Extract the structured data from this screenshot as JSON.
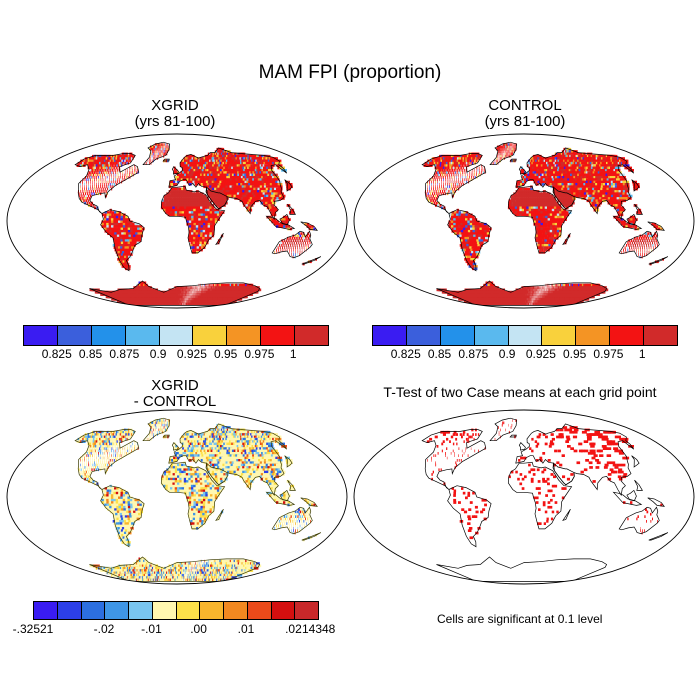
{
  "title": "MAM FPI (proportion)",
  "panels": {
    "p1": {
      "title1": "XGRID",
      "title2": "(yrs 81-100)"
    },
    "p2": {
      "title1": "CONTROL",
      "title2": "(yrs 81-100)"
    },
    "p3": {
      "title1": "XGRID",
      "title2": "- CONTROL"
    },
    "p4": {
      "title1": "T-Test of two Case means at each grid point"
    }
  },
  "colorbar_top": {
    "colors": [
      "#3a1cf2",
      "#3b5fdc",
      "#2391ea",
      "#5ab9ee",
      "#c4e4f3",
      "#f9d13c",
      "#f49424",
      "#f31313",
      "#d12a2a"
    ],
    "labels": [
      "0.825",
      "0.85",
      "0.875",
      "0.9",
      "0.925",
      "0.95",
      "0.975",
      "1"
    ]
  },
  "colorbar_diff": {
    "colors": [
      "#3a1cf2",
      "#2c3fe8",
      "#2c6fe0",
      "#3f96e6",
      "#79c5f0",
      "#fff7b0",
      "#fde14a",
      "#f8b52d",
      "#f28820",
      "#ea4a1a",
      "#d40f0f",
      "#c8282a"
    ],
    "labels": [
      "-.32521",
      "-.02",
      "-.01",
      ".00",
      ".01",
      ".02",
      ".14348"
    ]
  },
  "significance_note": "Cells are significant at 0.1 level"
}
